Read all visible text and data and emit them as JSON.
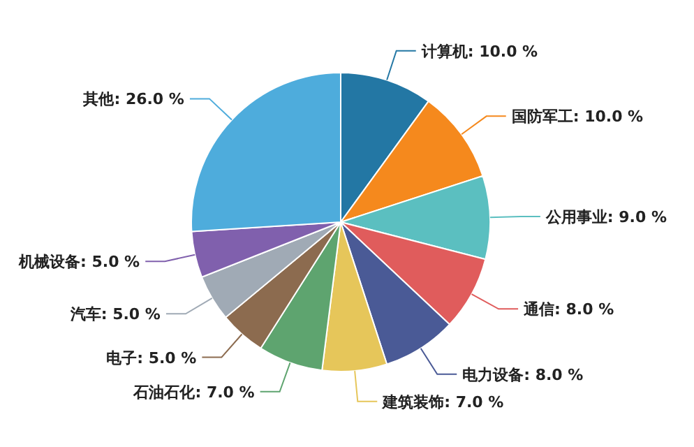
{
  "chart_data": {
    "type": "pie",
    "categories": [
      "计算机",
      "国防军工",
      "公用事业",
      "通信",
      "电力设备",
      "建筑装饰",
      "石油石化",
      "电子",
      "汽车",
      "机械设备",
      "其他"
    ],
    "values": [
      10,
      10,
      9,
      8,
      8,
      7,
      7,
      5,
      5,
      5,
      26
    ],
    "value_labels": [
      "10.0 %",
      "10.0 %",
      "9.0 %",
      "8.0 %",
      "8.0 %",
      "7.0 %",
      "7.0 %",
      "5.0 %",
      "5.0 %",
      "5.0 %",
      "26.0 %"
    ],
    "colors": [
      "#2377a4",
      "#f5891d",
      "#5bbfc0",
      "#e05c5c",
      "#4a5a96",
      "#e6c65a",
      "#5ea46f",
      "#8c6b4f",
      "#a0aab5",
      "#8060ad",
      "#4eacdc"
    ]
  }
}
